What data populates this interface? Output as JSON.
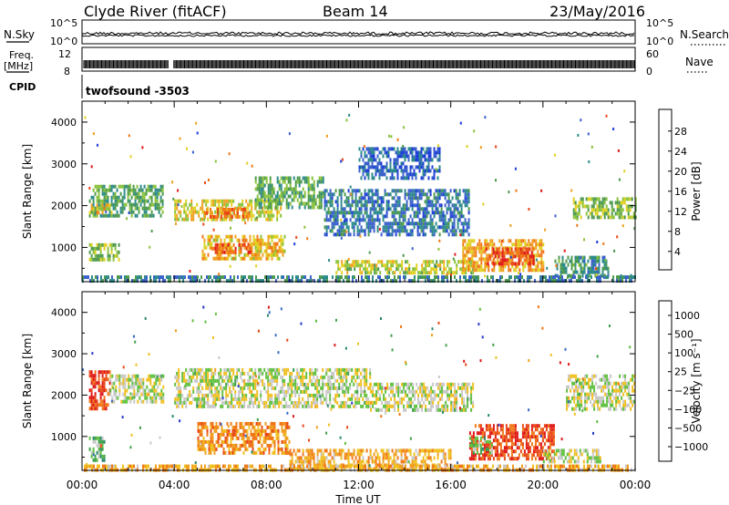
{
  "header": {
    "station": "Clyde River (fitACF)",
    "beam": "Beam 14",
    "date": "23/May/2016"
  },
  "strips": {
    "nsky_label": "N.Sky",
    "nsky_ticks": [
      "10^5",
      "10^0"
    ],
    "nsearch_label": "N.Search",
    "nsearch_ticks": [
      "10^5",
      "10^0"
    ],
    "freq_label_1": "Freq.",
    "freq_label_2": "[MHz]",
    "freq_ticks": [
      "12",
      "8"
    ],
    "nave_label": "Nave",
    "nave_ticks": [
      "60",
      "0"
    ],
    "cpid_label": "CPID",
    "cpid_value": "twofsound -3503"
  },
  "chart_data": [
    {
      "type": "heatmap",
      "name": "power",
      "ylabel": "Slant Range [km]",
      "ylim": [
        180,
        4500
      ],
      "yticks": [
        1000,
        2000,
        3000,
        4000
      ],
      "xlim": [
        0,
        24
      ],
      "colorbar": {
        "label": "Power [dB]",
        "ticks": [
          "4",
          "8",
          "12",
          "16",
          "20",
          "24",
          "28"
        ],
        "colors": [
          "#1f3fd8",
          "#3a60cc",
          "#2d8a8a",
          "#4d9a4d",
          "#8ac23a",
          "#e0d020",
          "#f0a020",
          "#f07818",
          "#e84818",
          "#e01818"
        ]
      },
      "bands": [
        {
          "t": [
            0.3,
            3.5
          ],
          "r": [
            1800,
            2500
          ],
          "level": 0.35
        },
        {
          "t": [
            0.3,
            1.3
          ],
          "r": [
            1800,
            2050
          ],
          "level": 0.6
        },
        {
          "t": [
            4.0,
            8.6
          ],
          "r": [
            1700,
            2150
          ],
          "level": 0.55
        },
        {
          "t": [
            5.3,
            7.2
          ],
          "r": [
            1700,
            1950
          ],
          "level": 0.75
        },
        {
          "t": [
            7.5,
            10.5
          ],
          "r": [
            2000,
            2700
          ],
          "level": 0.35
        },
        {
          "t": [
            5.2,
            8.8
          ],
          "r": [
            700,
            1300
          ],
          "level": 0.6
        },
        {
          "t": [
            5.6,
            7.4
          ],
          "r": [
            850,
            1100
          ],
          "level": 0.8
        },
        {
          "t": [
            0.3,
            1.6
          ],
          "r": [
            700,
            1100
          ],
          "level": 0.45
        },
        {
          "t": [
            10.5,
            16.8
          ],
          "r": [
            1300,
            2400
          ],
          "level": 0.2
        },
        {
          "t": [
            11.0,
            17.0
          ],
          "r": [
            400,
            700
          ],
          "level": 0.5
        },
        {
          "t": [
            16.5,
            20.0
          ],
          "r": [
            500,
            1200
          ],
          "level": 0.65
        },
        {
          "t": [
            17.5,
            19.6
          ],
          "r": [
            650,
            1000
          ],
          "level": 0.85
        },
        {
          "t": [
            20.5,
            22.8
          ],
          "r": [
            300,
            800
          ],
          "level": 0.3
        },
        {
          "t": [
            21.3,
            24.0
          ],
          "r": [
            1700,
            2200
          ],
          "level": 0.45
        },
        {
          "t": [
            0.0,
            24.0
          ],
          "r": [
            200,
            330
          ],
          "level": 0.25
        },
        {
          "t": [
            12.0,
            15.5
          ],
          "r": [
            2700,
            3400
          ],
          "level": 0.15
        }
      ]
    },
    {
      "type": "heatmap",
      "name": "velocity",
      "ylabel": "Slant Range [km]",
      "ylim": [
        180,
        4500
      ],
      "yticks": [
        1000,
        2000,
        3000,
        4000
      ],
      "xlim": [
        0,
        24
      ],
      "xticks": [
        "00:00",
        "04:00",
        "08:00",
        "12:00",
        "16:00",
        "20:00",
        "00:00"
      ],
      "xlabel": "Time UT",
      "colorbar": {
        "label": "Velocity [m s⁻¹]",
        "ticks": [
          "1000",
          "500",
          "100",
          "25",
          "−25",
          "−100",
          "−500",
          "−1000"
        ],
        "colors": [
          "#2a3ac8",
          "#3a6cc0",
          "#2a8a6a",
          "#3ea04a",
          "#60c040",
          "#c8c8c8",
          "#f0c020",
          "#f0a020",
          "#f07818",
          "#e84818",
          "#e01818"
        ]
      },
      "bands": [
        {
          "t": [
            0.3,
            1.2
          ],
          "r": [
            1700,
            2600
          ],
          "level": 0.88
        },
        {
          "t": [
            1.2,
            3.5
          ],
          "r": [
            1800,
            2500
          ],
          "level": 0.5
        },
        {
          "t": [
            4.0,
            12.5
          ],
          "r": [
            1700,
            2650
          ],
          "level": 0.5
        },
        {
          "t": [
            12.5,
            17.0
          ],
          "r": [
            1600,
            2300
          ],
          "level": 0.5
        },
        {
          "t": [
            5.0,
            9.0
          ],
          "r": [
            600,
            1350
          ],
          "level": 0.72
        },
        {
          "t": [
            9.0,
            16.0
          ],
          "r": [
            250,
            700
          ],
          "level": 0.66
        },
        {
          "t": [
            16.8,
            20.5
          ],
          "r": [
            450,
            1300
          ],
          "level": 0.87
        },
        {
          "t": [
            16.8,
            17.8
          ],
          "r": [
            600,
            1000
          ],
          "level": 0.4
        },
        {
          "t": [
            20.0,
            22.5
          ],
          "r": [
            350,
            700
          ],
          "level": 0.5
        },
        {
          "t": [
            21.0,
            24.0
          ],
          "r": [
            1700,
            2500
          ],
          "level": 0.5
        },
        {
          "t": [
            0.0,
            24.0
          ],
          "r": [
            200,
            320
          ],
          "level": 0.65
        },
        {
          "t": [
            0.3,
            1.0
          ],
          "r": [
            400,
            1000
          ],
          "level": 0.35
        }
      ]
    }
  ]
}
